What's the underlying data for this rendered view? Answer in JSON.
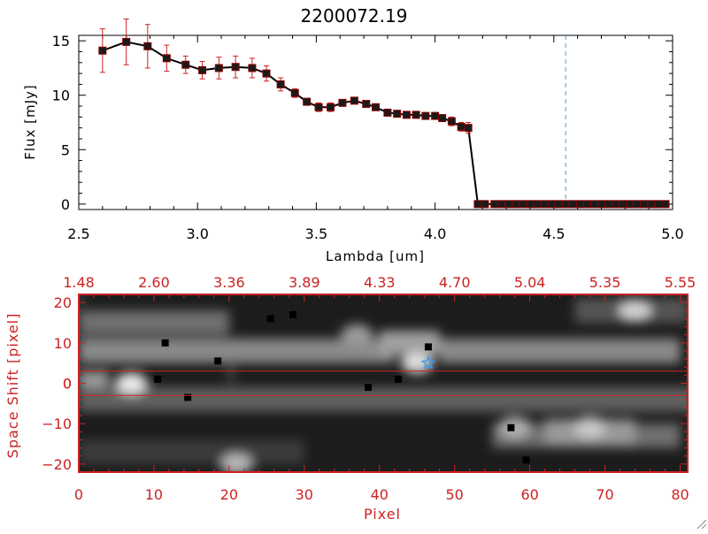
{
  "chart_data": [
    {
      "type": "line",
      "title": "2200072.19",
      "xlabel": "Lambda [um]",
      "ylabel": "Flux [mJy]",
      "xlim": [
        2.5,
        5.0
      ],
      "ylim": [
        -0.5,
        15.5
      ],
      "xticks": [
        "2.5",
        "3.0",
        "3.5",
        "4.0",
        "4.5",
        "5.0"
      ],
      "yticks": [
        "0",
        "5",
        "10",
        "15"
      ],
      "series": [
        {
          "x": [
            2.6,
            2.7,
            2.79,
            2.87,
            2.95,
            3.02,
            3.09,
            3.16,
            3.23,
            3.29,
            3.35,
            3.41,
            3.46,
            3.51,
            3.56,
            3.61,
            3.66,
            3.71,
            3.75,
            3.8,
            3.84,
            3.88,
            3.92,
            3.96,
            4.0,
            4.03,
            4.07,
            4.11,
            4.14,
            4.18,
            4.21,
            4.25,
            4.28,
            4.31,
            4.34,
            4.37,
            4.4,
            4.43,
            4.46,
            4.49,
            4.52,
            4.55,
            4.58,
            4.61,
            4.64,
            4.67,
            4.7,
            4.73,
            4.76,
            4.79,
            4.82,
            4.85,
            4.88,
            4.91,
            4.94,
            4.97
          ],
          "y": [
            14.1,
            14.9,
            14.5,
            13.4,
            12.8,
            12.3,
            12.5,
            12.6,
            12.5,
            12.0,
            11.0,
            10.2,
            9.4,
            8.9,
            8.9,
            9.3,
            9.5,
            9.2,
            8.9,
            8.4,
            8.3,
            8.2,
            8.2,
            8.1,
            8.1,
            7.9,
            7.6,
            7.1,
            7.0,
            0,
            0,
            0,
            0,
            0,
            0,
            0,
            0,
            0,
            0,
            0,
            0,
            0,
            0,
            0,
            0,
            0,
            0,
            0,
            0,
            0,
            0,
            0,
            0,
            0,
            0,
            0
          ],
          "yerr": [
            2.0,
            2.1,
            2.0,
            1.2,
            0.8,
            0.8,
            1.0,
            1.0,
            0.9,
            0.7,
            0.6,
            0.4,
            0.3,
            0.4,
            0.4,
            0.3,
            0.3,
            0.3,
            0.3,
            0.3,
            0.3,
            0.3,
            0.3,
            0.3,
            0.3,
            0.3,
            0.4,
            0.4,
            0.5,
            0,
            0,
            0,
            0,
            0,
            0,
            0,
            0,
            0,
            0,
            0,
            0,
            0,
            0,
            0,
            0,
            0,
            0,
            0,
            0,
            0,
            0,
            0,
            0,
            0,
            0,
            0
          ]
        }
      ],
      "reference_line": {
        "x": 4.55,
        "style": "dashed",
        "color": "#4aa0d8"
      },
      "line_color": "#000000",
      "errorbar_color": "#cc2222",
      "grid": false
    },
    {
      "type": "heatmap",
      "xlabel": "Pixel",
      "ylabel": "Space Shift [pixel]",
      "xlim": [
        0,
        81
      ],
      "ylim": [
        -22,
        22
      ],
      "xticks": [
        "0",
        "10",
        "20",
        "30",
        "40",
        "50",
        "60",
        "70",
        "80"
      ],
      "yticks": [
        "-20",
        "-10",
        "0",
        "10",
        "20"
      ],
      "top_ticks": [
        "1.48",
        "2.60",
        "3.36",
        "3.89",
        "4.33",
        "4.70",
        "5.04",
        "5.35",
        "5.55"
      ],
      "axis_color": "#cc2222",
      "extraction_lines": [
        3,
        -3
      ],
      "marker": {
        "x": 46.5,
        "y": 5.0,
        "symbol": "star",
        "color": "#3399ff"
      },
      "bad_pixels": [
        [
          11.5,
          10
        ],
        [
          18.5,
          5.5
        ],
        [
          25.5,
          16
        ],
        [
          28.5,
          17
        ],
        [
          10.5,
          1
        ],
        [
          14.5,
          -3.5
        ],
        [
          38.5,
          -1
        ],
        [
          42.5,
          1
        ],
        [
          46.5,
          9
        ],
        [
          57.5,
          -11
        ],
        [
          59.5,
          -19
        ]
      ]
    }
  ],
  "colors": {
    "axis": "#000000",
    "accent": "#cc2222",
    "marker": "#3399ff"
  }
}
